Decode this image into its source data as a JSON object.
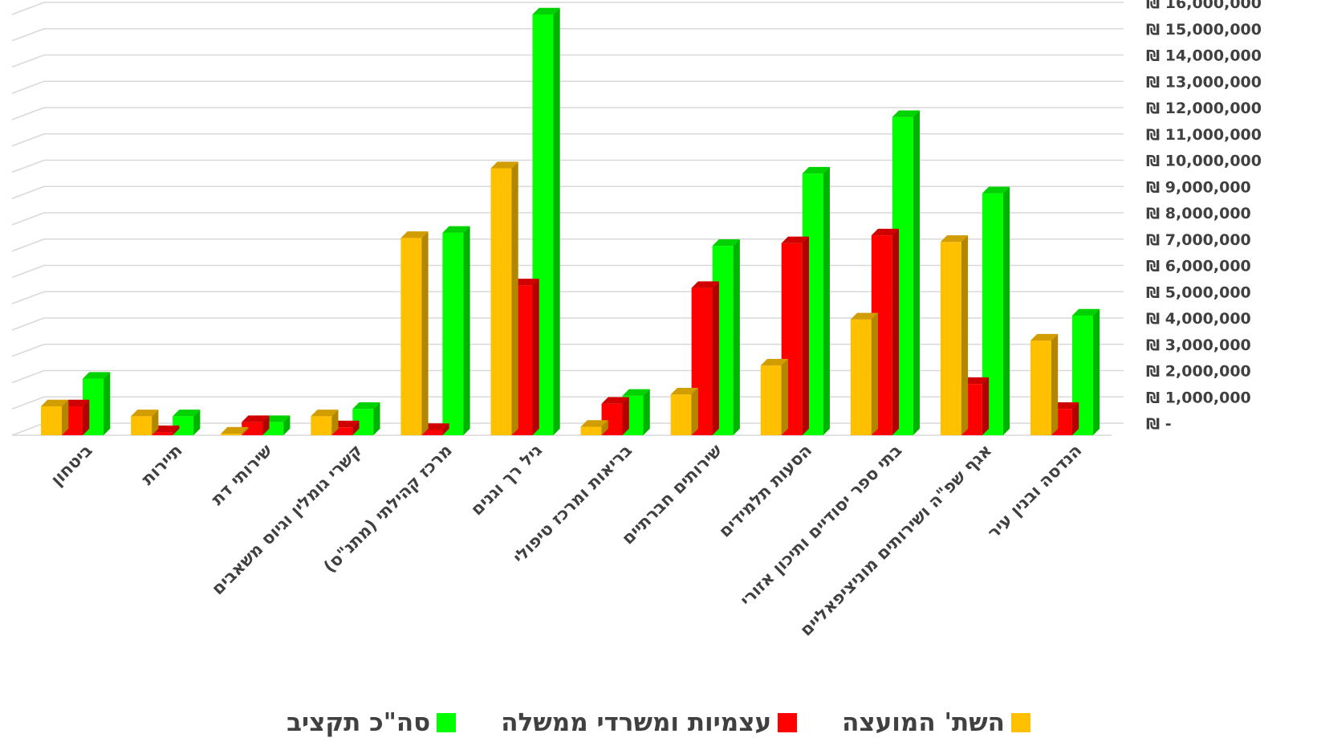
{
  "chart_data": {
    "type": "bar",
    "three_d": true,
    "direction": "rtl",
    "categories": [
      "ביטחון",
      "תיירות",
      "שירותי דת",
      "קשרי גומלין וגיוס משאבים",
      "מרכז קהילתי (מתנ\"ס)",
      "גיל רך וגנים",
      "בריאות ומרכז טיפולי",
      "שירותים חברתיים",
      "הסעות תלמידים",
      "בתי ספר יסודיים ותיכון אזורי",
      "אגף שפ\"ה ושירותים מוניציפאליים",
      "הנדסה ובנין עיר"
    ],
    "series": [
      {
        "name": "השת' המועצה",
        "color": "#FFC000",
        "values": [
          1100000,
          720000,
          20000,
          720000,
          7500000,
          10150000,
          320000,
          1550000,
          2650000,
          4400000,
          7350000,
          3600000
        ]
      },
      {
        "name": "עצמיות ומשרדי ממשלה",
        "color": "#FF0000",
        "values": [
          1100000,
          120000,
          500000,
          300000,
          200000,
          5700000,
          1200000,
          5600000,
          7300000,
          7600000,
          1950000,
          1000000
        ]
      },
      {
        "name": "סה\"כ תקציב",
        "color": "#00FF00",
        "values": [
          2150000,
          720000,
          500000,
          1000000,
          7700000,
          16000000,
          1500000,
          7200000,
          9950000,
          12100000,
          9200000,
          4550000
        ]
      }
    ],
    "y_axis": {
      "position": "right",
      "min": 0,
      "max": 16000000,
      "step": 1000000,
      "tick_labels": [
        "₪ -",
        "₪ 1,000,000",
        "₪ 2,000,000",
        "₪ 3,000,000",
        "₪ 4,000,000",
        "₪ 5,000,000",
        "₪ 6,000,000",
        "₪ 7,000,000",
        "₪ 8,000,000",
        "₪ 9,000,000",
        "₪ 10,000,000",
        "₪ 11,000,000",
        "₪ 12,000,000",
        "₪ 13,000,000",
        "₪ 14,000,000",
        "₪ 15,000,000",
        "₪ 16,000,000"
      ]
    },
    "grid": true,
    "legend_position": "bottom"
  }
}
